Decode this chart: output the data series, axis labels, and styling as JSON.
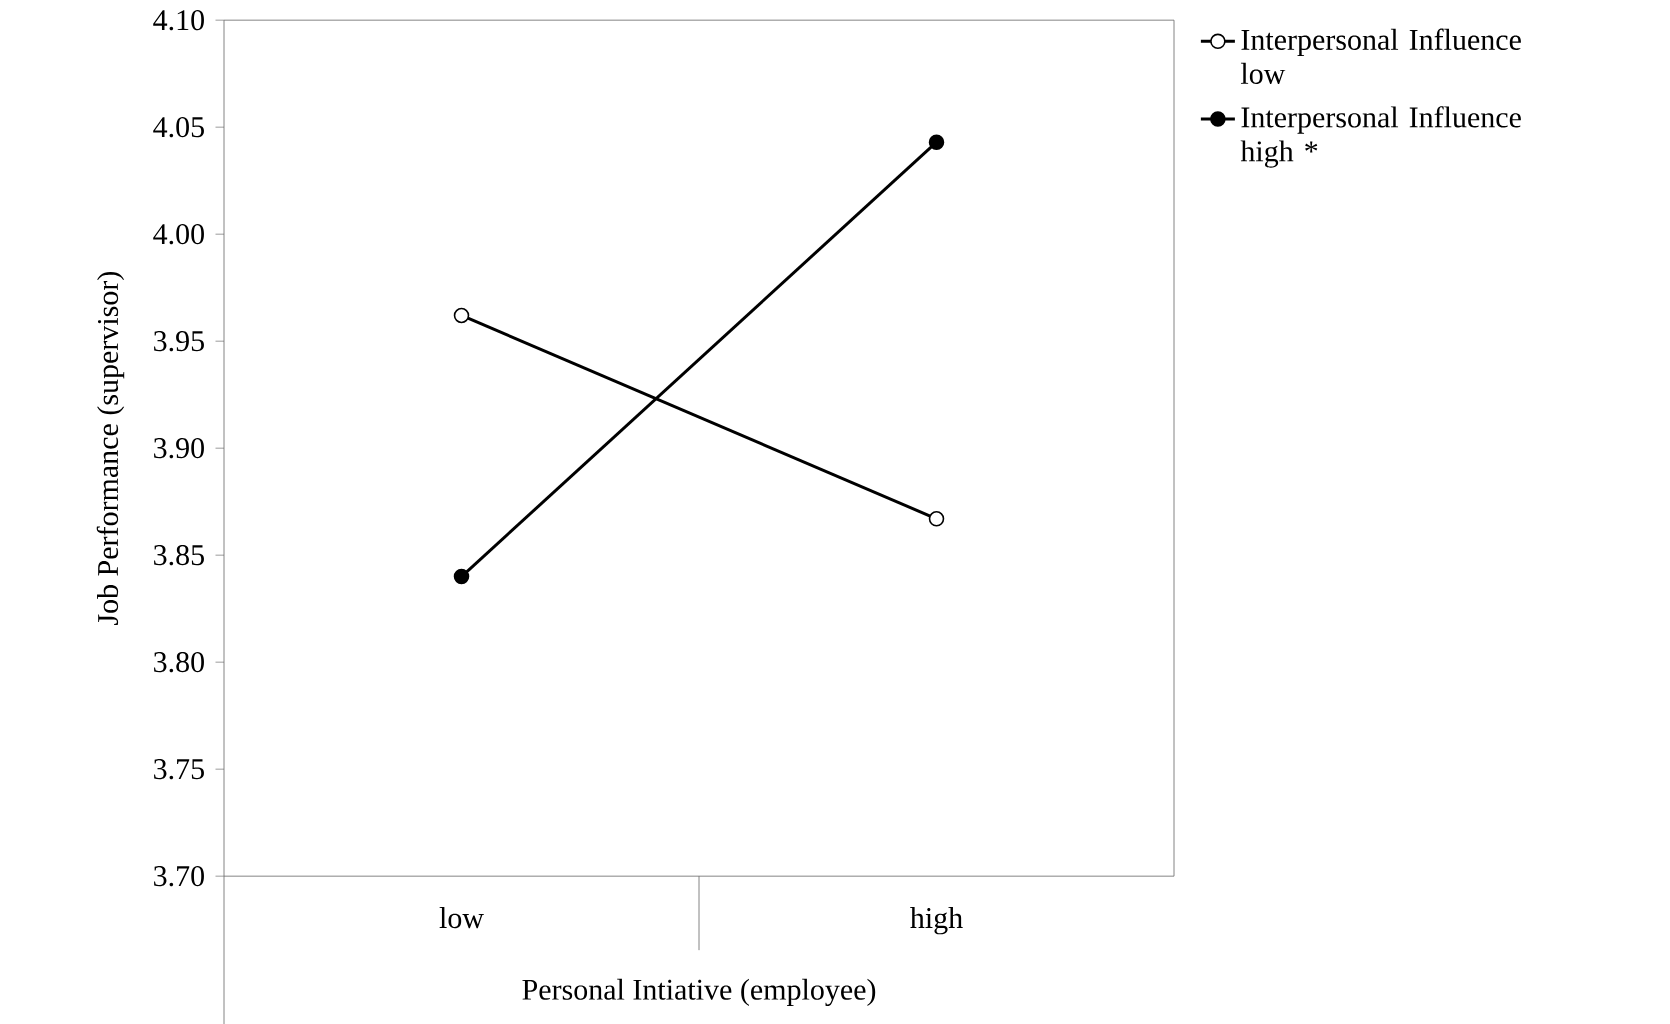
{
  "chart_data": {
    "type": "line",
    "xlabel": "Personal Intiative (employee)",
    "ylabel": "Job Performance (supervisor)",
    "categories": [
      "low",
      "high"
    ],
    "series": [
      {
        "name": "Interpersonal Influence low",
        "color": "#000000",
        "values": [
          3.962,
          3.867
        ]
      },
      {
        "name": "Interpersonal Influence high *",
        "color": "#000000",
        "values": [
          3.84,
          4.043
        ]
      }
    ],
    "ylim": [
      3.7,
      4.1
    ],
    "yticks": [
      {
        "value": 3.7,
        "label": "3.70"
      },
      {
        "value": 3.75,
        "label": "3.75"
      },
      {
        "value": 3.8,
        "label": "3.80"
      },
      {
        "value": 3.85,
        "label": "3.85"
      },
      {
        "value": 3.9,
        "label": "3.90"
      },
      {
        "value": 3.95,
        "label": "3.95"
      },
      {
        "value": 4.0,
        "label": "4.00"
      },
      {
        "value": 4.05,
        "label": "4.05"
      },
      {
        "value": 4.1,
        "label": "4.10"
      }
    ],
    "legend": "right",
    "marker": "circle",
    "line_style": "solid",
    "grid": false
  }
}
